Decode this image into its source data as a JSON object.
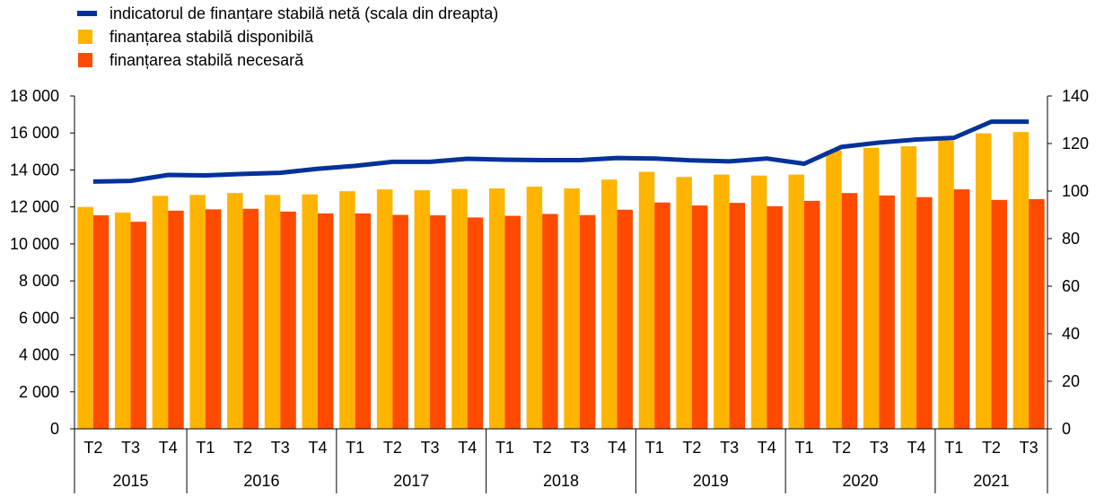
{
  "chart_data": {
    "type": "bar",
    "legend": [
      {
        "label": "indicatorul de finanțare stabilă netă (scala din dreapta)",
        "kind": "line",
        "color": "#003299"
      },
      {
        "label": "finanțarea stabilă disponibilă",
        "kind": "box",
        "color": "#FFB400"
      },
      {
        "label": "finanțarea stabilă necesară",
        "kind": "box",
        "color": "#FF4B00"
      }
    ],
    "legend_position": "top-left",
    "grid": false,
    "categories": [
      "T2",
      "T3",
      "T4",
      "T1",
      "T2",
      "T3",
      "T4",
      "T1",
      "T2",
      "T3",
      "T4",
      "T1",
      "T2",
      "T3",
      "T4",
      "T1",
      "T2",
      "T3",
      "T4",
      "T1",
      "T2",
      "T3",
      "T4",
      "T1",
      "T2",
      "T3"
    ],
    "years": [
      {
        "label": "2015",
        "count": 3
      },
      {
        "label": "2016",
        "count": 4
      },
      {
        "label": "2017",
        "count": 4
      },
      {
        "label": "2018",
        "count": 4
      },
      {
        "label": "2019",
        "count": 4
      },
      {
        "label": "2020",
        "count": 4
      },
      {
        "label": "2021",
        "count": 3
      }
    ],
    "series": [
      {
        "name": "finanțarea stabilă disponibilă",
        "axis": "left",
        "color": "#FFB400",
        "values": [
          12000,
          11700,
          12600,
          12650,
          12750,
          12650,
          12680,
          12850,
          12950,
          12900,
          12970,
          13000,
          13100,
          13000,
          13480,
          13900,
          13620,
          13750,
          13700,
          13750,
          15050,
          15200,
          15280,
          15600,
          15980,
          16050
        ]
      },
      {
        "name": "finanțarea stabilă necesară",
        "axis": "left",
        "color": "#FF4B00",
        "values": [
          11550,
          11200,
          11800,
          11870,
          11900,
          11750,
          11650,
          11650,
          11570,
          11550,
          11430,
          11520,
          11620,
          11560,
          11850,
          12240,
          12080,
          12220,
          12040,
          12330,
          12750,
          12620,
          12530,
          12950,
          12380,
          12420
        ]
      },
      {
        "name": "indicatorul de finanțare stabilă netă (scala din dreapta)",
        "axis": "right",
        "type": "line",
        "color": "#003299",
        "values": [
          104,
          104.3,
          106.8,
          106.6,
          107.2,
          107.7,
          109.4,
          110.6,
          112.3,
          112.3,
          113.6,
          113.2,
          113.0,
          113.0,
          113.9,
          113.7,
          112.9,
          112.5,
          113.7,
          111.5,
          118.6,
          120.4,
          121.7,
          122.4,
          129.2,
          129.2
        ]
      }
    ],
    "y_left": {
      "min": 0,
      "max": 18000,
      "ticks": [
        0,
        2000,
        4000,
        6000,
        8000,
        10000,
        12000,
        14000,
        16000,
        18000
      ],
      "tick_labels": [
        "0",
        "2 000",
        "4 000",
        "6 000",
        "8 000",
        "10 000",
        "12 000",
        "14 000",
        "16 000",
        "18 000"
      ]
    },
    "y_right": {
      "min": 0,
      "max": 140,
      "ticks": [
        0,
        20,
        40,
        60,
        80,
        100,
        120,
        140
      ],
      "tick_labels": [
        "0",
        "20",
        "40",
        "60",
        "80",
        "100",
        "120",
        "140"
      ]
    }
  }
}
